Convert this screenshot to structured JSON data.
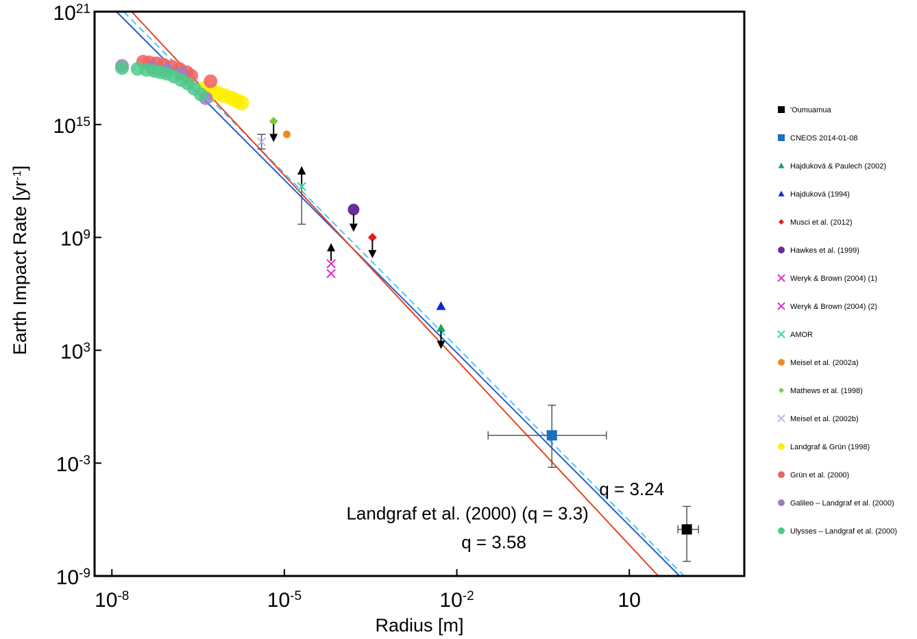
{
  "chart_data": {
    "type": "scatter",
    "title": "",
    "xlabel": "Radius  [m]",
    "ylabel": "Earth Impact Rate [yr-1]",
    "ylabel_parts": {
      "main": "Earth Impact Rate [yr",
      "sup": "-1",
      "end": "]"
    },
    "x_scale": "log",
    "y_scale": "log",
    "xlim": [
      5e-09,
      1000
    ],
    "ylim": [
      1e-09,
      1e+21
    ],
    "x_ticks": [
      {
        "base": "10",
        "exp": "-8",
        "value": 1e-08
      },
      {
        "base": "10",
        "exp": "-5",
        "value": 1e-05
      },
      {
        "base": "10",
        "exp": "-2",
        "value": 0.01
      },
      {
        "base": "10",
        "exp": "",
        "value": 10
      }
    ],
    "y_ticks": [
      {
        "base": "10",
        "exp": "-9",
        "value": 1e-09
      },
      {
        "base": "10",
        "exp": "-3",
        "value": 0.001
      },
      {
        "base": "10",
        "exp": "3",
        "value": 1000.0
      },
      {
        "base": "10",
        "exp": "9",
        "value": 1000000000.0
      },
      {
        "base": "10",
        "exp": "15",
        "value": 1000000000000000.0
      },
      {
        "base": "10",
        "exp": "21",
        "value": 1e+21
      }
    ],
    "grid": false,
    "legend_position": "right",
    "fit_lines": [
      {
        "label": "q = 3.24",
        "color": "#1f5fd6",
        "dashed": false,
        "points": [
          [
            1.2e-08,
            1e+21
          ],
          [
            75,
            1e-09
          ]
        ]
      },
      {
        "label": "Landgraf et al. (2000) (q = 3.3)",
        "color": "#4fc3f7",
        "dashed": true,
        "points": [
          [
            1.6e-08,
            1e+21
          ],
          [
            90,
            1e-09
          ]
        ]
      },
      {
        "label": "q = 3.58",
        "color": "#e8421e",
        "dashed": false,
        "points": [
          [
            2.2e-08,
            1e+21
          ],
          [
            32,
            1e-09
          ]
        ]
      }
    ],
    "annotations": [
      {
        "text": "q = 3.24",
        "x": 3.0,
        "y": 2e-05
      },
      {
        "text": "Landgraf et al. (2000) (q = 3.3)",
        "x": 0.00012,
        "y": 1e-06
      },
      {
        "text": "q = 3.58",
        "x": 0.012,
        "y": 3e-08
      }
    ],
    "series": [
      {
        "name": "'Oumuamua",
        "marker": "square",
        "color": "#000000",
        "size": 15,
        "points": [
          {
            "x": 100,
            "y": 3e-07,
            "xerr": [
              70,
              160
            ],
            "yerr": [
              6e-09,
              5e-06
            ]
          }
        ]
      },
      {
        "name": "CNEOS 2014-01-08",
        "marker": "square",
        "color": "#1a6fc0",
        "size": 15,
        "points": [
          {
            "x": 0.45,
            "y": 0.03,
            "xerr": [
              0.035,
              4
            ],
            "yerr": [
              0.0006,
              1.2
            ]
          }
        ]
      },
      {
        "name": "Hajduková & Paulech (2002)",
        "marker": "triangle",
        "color": "#19a35a",
        "size": 13,
        "points": [
          {
            "x": 0.0053,
            "y": 15000.0,
            "arrow": "down"
          }
        ]
      },
      {
        "name": "Hajduková (1994)",
        "marker": "triangle",
        "color": "#1026d8",
        "size": 14,
        "points": [
          {
            "x": 0.0053,
            "y": 220000.0
          }
        ]
      },
      {
        "name": "Musci et al. (2012)",
        "marker": "diamond",
        "color": "#e51b1b",
        "size": 13,
        "points": [
          {
            "x": 0.00034,
            "y": 1000000000.0,
            "arrow": "down"
          }
        ]
      },
      {
        "name": "Hawkes et al. (1999)",
        "marker": "circle",
        "color": "#6a2c9a",
        "size": 17,
        "points": [
          {
            "x": 0.00016,
            "y": 30000000000.0,
            "arrow": "down"
          }
        ]
      },
      {
        "name": "Weryk & Brown (2004) (1)",
        "marker": "x",
        "color": "#e02ad0",
        "size": 12,
        "points": [
          {
            "x": 6.5e-05,
            "y": 40000000.0,
            "arrow": "up"
          }
        ]
      },
      {
        "name": "Weryk & Brown (2004) (2)",
        "marker": "x",
        "color": "#e02ad0",
        "size": 12,
        "points": [
          {
            "x": 6.5e-05,
            "y": 12000000.0
          }
        ]
      },
      {
        "name": "AMOR",
        "marker": "x",
        "color": "#2bd6b0",
        "size": 12,
        "points": [
          {
            "x": 2e-05,
            "y": 500000000000.0,
            "yerr": [
              5000000000.0,
              2300000000000.0
            ],
            "arrow": "up"
          }
        ]
      },
      {
        "name": "Meisel et al. (2002a)",
        "marker": "circle",
        "color": "#f08a1c",
        "size": 11,
        "points": [
          {
            "x": 1.1e-05,
            "y": 300000000000000.0
          }
        ]
      },
      {
        "name": "Mathews et al. (1998)",
        "marker": "diamond",
        "color": "#7ac943",
        "size": 13,
        "points": [
          {
            "x": 6.5e-06,
            "y": 1500000000000000.0,
            "arrow": "down"
          }
        ]
      },
      {
        "name": "Meisel et al. (2002b)",
        "marker": "x",
        "color": "#b9b4e6",
        "size": 12,
        "points": [
          {
            "x": 4e-06,
            "y": 120000000000000.0,
            "yerr": [
              50000000000000.0,
              300000000000000.0
            ]
          }
        ]
      },
      {
        "name": "Landgraf & Grün (1998)",
        "marker": "circle",
        "color": "#ffee00",
        "size": 22,
        "points": [
          {
            "x": 4e-07,
            "y": 8e+16
          },
          {
            "x": 5.5e-07,
            "y": 6e+16
          },
          {
            "x": 7e-07,
            "y": 4.5e+16
          },
          {
            "x": 9e-07,
            "y": 3.5e+16
          },
          {
            "x": 1.2e-06,
            "y": 2.5e+16
          },
          {
            "x": 1.5e-06,
            "y": 1.8e+16
          },
          {
            "x": 1.8e-06,
            "y": 1.4e+16
          }
        ]
      },
      {
        "name": "Grün et al. (2000)",
        "marker": "circle",
        "color": "#f06060",
        "size": 20,
        "points": [
          {
            "x": 3.5e-08,
            "y": 2.2e+18
          },
          {
            "x": 4.5e-08,
            "y": 2e+18
          },
          {
            "x": 6e-08,
            "y": 1.8e+18
          },
          {
            "x": 8e-08,
            "y": 1.5e+18
          },
          {
            "x": 1.1e-07,
            "y": 1.2e+18
          },
          {
            "x": 1.5e-07,
            "y": 9e+17
          },
          {
            "x": 2e-07,
            "y": 6e+17
          },
          {
            "x": 2.4e-07,
            "y": 4e+17
          },
          {
            "x": 5.2e-07,
            "y": 2e+17
          }
        ]
      },
      {
        "name": "Galileo – Landgraf et al. (2000)",
        "marker": "circle",
        "color": "#9b7fc4",
        "size": 20,
        "points": [
          {
            "x": 1.5e-08,
            "y": 1.3e+18
          },
          {
            "x": 5e-08,
            "y": 1e+18
          },
          {
            "x": 9e-08,
            "y": 8e+17
          },
          {
            "x": 1.6e-07,
            "y": 5e+17
          },
          {
            "x": 4.3e-07,
            "y": 2.5e+16
          }
        ]
      },
      {
        "name": "Ulysses – Landgraf et al. (2000)",
        "marker": "circle",
        "color": "#4fc98a",
        "size": 20,
        "points": [
          {
            "x": 1.5e-08,
            "y": 1e+18
          },
          {
            "x": 2.8e-08,
            "y": 9e+17
          },
          {
            "x": 4e-08,
            "y": 8e+17
          },
          {
            "x": 5.5e-08,
            "y": 7e+17
          },
          {
            "x": 7e-08,
            "y": 6e+17
          },
          {
            "x": 9e-08,
            "y": 5e+17
          },
          {
            "x": 1.2e-07,
            "y": 3.5e+17
          },
          {
            "x": 1.6e-07,
            "y": 2.3e+17
          },
          {
            "x": 2.1e-07,
            "y": 1.5e+17
          },
          {
            "x": 2.7e-07,
            "y": 8e+16
          },
          {
            "x": 3.5e-07,
            "y": 4e+16
          }
        ]
      }
    ]
  }
}
